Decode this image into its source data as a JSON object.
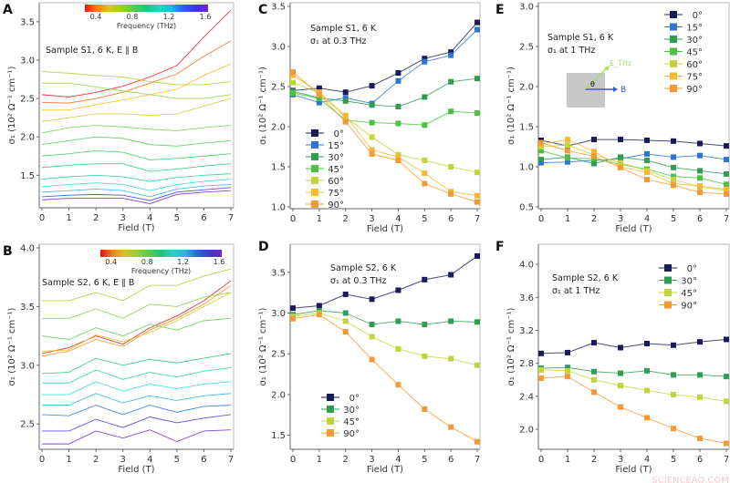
{
  "chart_data": [
    {
      "panel": "A",
      "type": "line",
      "annotation": [
        "Sample S1, 6 K, E ∥ B"
      ],
      "xlabel": "Field (T)",
      "ylabel": "σ₁ (10² Ω⁻¹ cm⁻¹)",
      "xlim": [
        0,
        7
      ],
      "ylim": [
        1.1,
        3.7
      ],
      "xticks": [
        0,
        1,
        2,
        3,
        4,
        5,
        6,
        7
      ],
      "yticks": [
        1.5,
        2.0,
        2.5,
        3.0,
        3.5
      ],
      "colorbar": {
        "label": "Frequency (THz)",
        "range": [
          0.25,
          1.6
        ],
        "ticks": [
          0.4,
          0.8,
          1.2,
          1.6
        ]
      },
      "x": [
        0,
        1,
        2,
        3,
        4,
        5,
        6,
        7
      ],
      "series": [
        {
          "frequency": 0.25,
          "values": [
            2.55,
            2.52,
            2.58,
            2.66,
            2.78,
            2.93,
            3.3,
            3.65
          ]
        },
        {
          "frequency": 0.35,
          "values": [
            2.45,
            2.44,
            2.5,
            2.58,
            2.7,
            2.82,
            3.05,
            3.25
          ]
        },
        {
          "frequency": 0.45,
          "values": [
            2.35,
            2.35,
            2.42,
            2.48,
            2.55,
            2.62,
            2.8,
            2.95
          ]
        },
        {
          "frequency": 0.55,
          "values": [
            2.2,
            2.25,
            2.3,
            2.3,
            2.28,
            2.3,
            2.4,
            2.5
          ]
        },
        {
          "frequency": 0.62,
          "values": [
            2.85,
            2.83,
            2.8,
            2.78,
            2.72,
            2.68,
            2.68,
            2.72
          ]
        },
        {
          "frequency": 0.68,
          "values": [
            2.7,
            2.7,
            2.65,
            2.6,
            2.55,
            2.5,
            2.5,
            2.55
          ]
        },
        {
          "frequency": 0.74,
          "values": [
            2.05,
            2.12,
            2.15,
            2.13,
            2.1,
            2.08,
            2.12,
            2.15
          ]
        },
        {
          "frequency": 0.8,
          "values": [
            1.9,
            1.95,
            2.0,
            1.98,
            1.9,
            1.88,
            1.92,
            1.95
          ]
        },
        {
          "frequency": 0.85,
          "values": [
            1.75,
            1.78,
            1.82,
            1.8,
            1.7,
            1.72,
            1.75,
            1.78
          ]
        },
        {
          "frequency": 0.9,
          "values": [
            1.6,
            1.63,
            1.65,
            1.65,
            1.55,
            1.58,
            1.62,
            1.65
          ]
        },
        {
          "frequency": 1.0,
          "values": [
            1.45,
            1.48,
            1.5,
            1.48,
            1.42,
            1.47,
            1.5,
            1.52
          ]
        },
        {
          "frequency": 1.1,
          "values": [
            1.35,
            1.38,
            1.4,
            1.38,
            1.3,
            1.38,
            1.42,
            1.45
          ]
        },
        {
          "frequency": 1.2,
          "values": [
            1.28,
            1.3,
            1.32,
            1.3,
            1.22,
            1.32,
            1.36,
            1.38
          ]
        },
        {
          "frequency": 1.4,
          "values": [
            1.22,
            1.24,
            1.25,
            1.24,
            1.17,
            1.28,
            1.31,
            1.34
          ]
        },
        {
          "frequency": 1.6,
          "values": [
            1.18,
            1.2,
            1.2,
            1.2,
            1.13,
            1.25,
            1.28,
            1.3
          ]
        }
      ]
    },
    {
      "panel": "B",
      "type": "line",
      "annotation": [
        "Sample S2, 6 K, E ∥ B"
      ],
      "xlabel": "Field (T)",
      "ylabel": "σ₁ (10² Ω⁻¹ cm⁻¹)",
      "xlim": [
        0,
        7
      ],
      "ylim": [
        2.3,
        4.0
      ],
      "xticks": [
        0,
        1,
        2,
        3,
        4,
        5,
        6,
        7
      ],
      "yticks": [
        2.5,
        3.0,
        3.5,
        4.0
      ],
      "colorbar": {
        "label": "Frequency (THz)",
        "range": [
          0.25,
          1.6
        ],
        "ticks": [
          0.4,
          0.8,
          1.2,
          1.6
        ]
      },
      "x": [
        0,
        1,
        2,
        3,
        4,
        5,
        6,
        7
      ],
      "series": [
        {
          "frequency": 0.25,
          "values": [
            3.1,
            3.15,
            3.25,
            3.18,
            3.32,
            3.42,
            3.55,
            3.72
          ]
        },
        {
          "frequency": 0.4,
          "values": [
            3.08,
            3.12,
            3.22,
            3.16,
            3.3,
            3.4,
            3.52,
            3.68
          ]
        },
        {
          "frequency": 0.5,
          "values": [
            3.12,
            3.13,
            3.26,
            3.2,
            3.28,
            3.38,
            3.5,
            3.62
          ]
        },
        {
          "frequency": 0.62,
          "values": [
            3.55,
            3.55,
            3.62,
            3.55,
            3.68,
            3.68,
            3.76,
            3.82
          ]
        },
        {
          "frequency": 0.7,
          "values": [
            3.4,
            3.4,
            3.48,
            3.4,
            3.52,
            3.5,
            3.58,
            3.62
          ]
        },
        {
          "frequency": 0.78,
          "values": [
            3.25,
            3.22,
            3.32,
            3.25,
            3.35,
            3.3,
            3.38,
            3.4
          ]
        },
        {
          "frequency": 0.9,
          "values": [
            2.93,
            2.94,
            3.06,
            3.0,
            3.05,
            3.02,
            3.06,
            3.1
          ]
        },
        {
          "frequency": 1.0,
          "values": [
            2.85,
            2.85,
            2.96,
            2.88,
            2.94,
            2.9,
            2.95,
            2.98
          ]
        },
        {
          "frequency": 1.1,
          "values": [
            2.75,
            2.75,
            2.86,
            2.78,
            2.84,
            2.8,
            2.84,
            2.86
          ]
        },
        {
          "frequency": 1.2,
          "values": [
            2.66,
            2.66,
            2.76,
            2.68,
            2.74,
            2.7,
            2.74,
            2.76
          ]
        },
        {
          "frequency": 1.3,
          "values": [
            2.58,
            2.57,
            2.66,
            2.58,
            2.66,
            2.6,
            2.65,
            2.66
          ]
        },
        {
          "frequency": 1.5,
          "values": [
            2.44,
            2.44,
            2.54,
            2.47,
            2.56,
            2.51,
            2.55,
            2.58
          ]
        },
        {
          "frequency": 1.6,
          "values": [
            2.33,
            2.33,
            2.44,
            2.38,
            2.45,
            2.35,
            2.44,
            2.45
          ]
        }
      ]
    },
    {
      "panel": "C",
      "type": "line",
      "annotation": [
        "Sample S1, 6 K",
        "σ₁ at 0.3 THz"
      ],
      "xlabel": "Field (T)",
      "ylabel": "σ₁ (10² Ω⁻¹ cm⁻¹)",
      "xlim": [
        0,
        7
      ],
      "ylim": [
        1.0,
        3.5
      ],
      "xticks": [
        0,
        1,
        2,
        3,
        4,
        5,
        6,
        7
      ],
      "yticks": [
        1.0,
        1.5,
        2.0,
        2.5,
        3.0,
        3.5
      ],
      "legend": "bottom-left",
      "x": [
        0,
        1,
        2,
        3,
        4,
        5,
        6,
        7
      ],
      "series": [
        {
          "name": "0°",
          "color": "#1b1b5c",
          "values": [
            2.45,
            2.48,
            2.43,
            2.51,
            2.67,
            2.85,
            2.93,
            3.3
          ]
        },
        {
          "name": "15°",
          "color": "#2f73d8",
          "values": [
            2.4,
            2.3,
            2.36,
            2.29,
            2.57,
            2.81,
            2.89,
            3.21
          ]
        },
        {
          "name": "30°",
          "color": "#2f9e52",
          "values": [
            2.44,
            2.36,
            2.32,
            2.27,
            2.25,
            2.37,
            2.56,
            2.6
          ]
        },
        {
          "name": "45°",
          "color": "#4cc140",
          "values": [
            2.42,
            2.35,
            2.08,
            2.05,
            2.04,
            2.02,
            2.19,
            2.17
          ]
        },
        {
          "name": "60°",
          "color": "#c3d43b",
          "values": [
            2.55,
            2.42,
            2.12,
            1.87,
            1.65,
            1.58,
            1.5,
            1.43
          ]
        },
        {
          "name": "75°",
          "color": "#f4b833",
          "values": [
            2.64,
            2.43,
            2.14,
            1.71,
            1.62,
            1.42,
            1.19,
            1.14
          ]
        },
        {
          "name": "90°",
          "color": "#f39a36",
          "values": [
            2.68,
            2.4,
            2.06,
            1.66,
            1.58,
            1.29,
            1.16,
            1.06
          ]
        }
      ]
    },
    {
      "panel": "D",
      "type": "line",
      "annotation": [
        "Sample S2, 6 K",
        "σ₁ at 0.3 THz"
      ],
      "xlabel": "Field (T)",
      "ylabel": "σ₁ (10² Ω⁻¹ cm⁻¹)",
      "xlim": [
        0,
        7
      ],
      "ylim": [
        1.35,
        3.8
      ],
      "xticks": [
        0,
        1,
        2,
        3,
        4,
        5,
        6,
        7
      ],
      "yticks": [
        1.5,
        2.0,
        2.5,
        3.0,
        3.5
      ],
      "legend": "bottom-left",
      "x": [
        0,
        1,
        2,
        3,
        4,
        5,
        6,
        7
      ],
      "series": [
        {
          "name": "0°",
          "color": "#1b1b5c",
          "values": [
            3.06,
            3.09,
            3.23,
            3.17,
            3.28,
            3.41,
            3.47,
            3.7
          ]
        },
        {
          "name": "30°",
          "color": "#2f9e52",
          "values": [
            2.98,
            3.03,
            3.0,
            2.86,
            2.9,
            2.86,
            2.9,
            2.89
          ]
        },
        {
          "name": "45°",
          "color": "#c3d43b",
          "values": [
            2.96,
            3.0,
            2.9,
            2.71,
            2.56,
            2.47,
            2.44,
            2.36
          ]
        },
        {
          "name": "90°",
          "color": "#f39a36",
          "values": [
            2.93,
            2.98,
            2.77,
            2.43,
            2.12,
            1.82,
            1.6,
            1.42
          ]
        }
      ]
    },
    {
      "panel": "E",
      "type": "line",
      "annotation": [
        "Sample S1, 6 K",
        "σ₁ at 1 THz"
      ],
      "inset": {
        "field_label": "B",
        "efield_label": "E_THz",
        "angle_label": "θ"
      },
      "xlabel": "Field (T)",
      "ylabel": "σ₁ (10² Ω⁻¹ cm⁻¹)",
      "xlim": [
        0,
        7
      ],
      "ylim": [
        0.5,
        3.0
      ],
      "xticks": [
        0,
        1,
        2,
        3,
        4,
        5,
        6,
        7
      ],
      "yticks": [
        0.5,
        1.0,
        1.5,
        2.0,
        2.5,
        3.0
      ],
      "legend": "top-right",
      "x": [
        0,
        1,
        2,
        3,
        4,
        5,
        6,
        7
      ],
      "series": [
        {
          "name": "0°",
          "color": "#1b1b5c",
          "values": [
            1.33,
            1.26,
            1.34,
            1.34,
            1.33,
            1.32,
            1.29,
            1.26
          ]
        },
        {
          "name": "15°",
          "color": "#2f73d8",
          "values": [
            1.05,
            1.06,
            1.08,
            1.1,
            1.16,
            1.12,
            1.14,
            1.09
          ]
        },
        {
          "name": "30°",
          "color": "#2f9e52",
          "values": [
            1.09,
            1.12,
            1.04,
            1.12,
            1.08,
            0.99,
            0.95,
            0.91
          ]
        },
        {
          "name": "45°",
          "color": "#4cc140",
          "values": [
            1.2,
            1.11,
            1.1,
            1.03,
            0.97,
            0.88,
            0.86,
            0.78
          ]
        },
        {
          "name": "60°",
          "color": "#c3d43b",
          "values": [
            1.25,
            1.27,
            1.15,
            1.05,
            0.95,
            0.84,
            0.75,
            0.7
          ]
        },
        {
          "name": "75°",
          "color": "#f4b833",
          "values": [
            1.28,
            1.34,
            1.19,
            1.0,
            0.93,
            0.79,
            0.76,
            0.72
          ]
        },
        {
          "name": "90°",
          "color": "#f39a36",
          "values": [
            1.3,
            1.2,
            1.13,
            0.99,
            0.84,
            0.77,
            0.68,
            0.66
          ]
        }
      ]
    },
    {
      "panel": "F",
      "type": "line",
      "annotation": [
        "Sample S2, 6 K",
        "σ₁ at 1 THz"
      ],
      "xlabel": "Field (T)",
      "ylabel": "σ₁ (10² Ω⁻¹ cm⁻¹)",
      "xlim": [
        0,
        7
      ],
      "ylim": [
        1.78,
        4.2
      ],
      "xticks": [
        0,
        1,
        2,
        3,
        4,
        5,
        6,
        7
      ],
      "yticks": [
        2.0,
        2.4,
        2.8,
        3.2,
        3.6,
        4.0
      ],
      "legend": "top-right",
      "x": [
        0,
        1,
        2,
        3,
        4,
        5,
        6,
        7
      ],
      "series": [
        {
          "name": "0°",
          "color": "#1b1b5c",
          "values": [
            2.92,
            2.93,
            3.05,
            2.99,
            3.04,
            3.02,
            3.06,
            3.09
          ]
        },
        {
          "name": "30°",
          "color": "#2f9e52",
          "values": [
            2.74,
            2.75,
            2.7,
            2.68,
            2.71,
            2.66,
            2.66,
            2.64
          ]
        },
        {
          "name": "45°",
          "color": "#c3d43b",
          "values": [
            2.72,
            2.71,
            2.6,
            2.53,
            2.47,
            2.42,
            2.39,
            2.34
          ]
        },
        {
          "name": "90°",
          "color": "#f39a36",
          "values": [
            2.62,
            2.64,
            2.45,
            2.27,
            2.14,
            2.01,
            1.89,
            1.83
          ]
        }
      ]
    }
  ],
  "watermark": "SCIENCEAQ.COM"
}
